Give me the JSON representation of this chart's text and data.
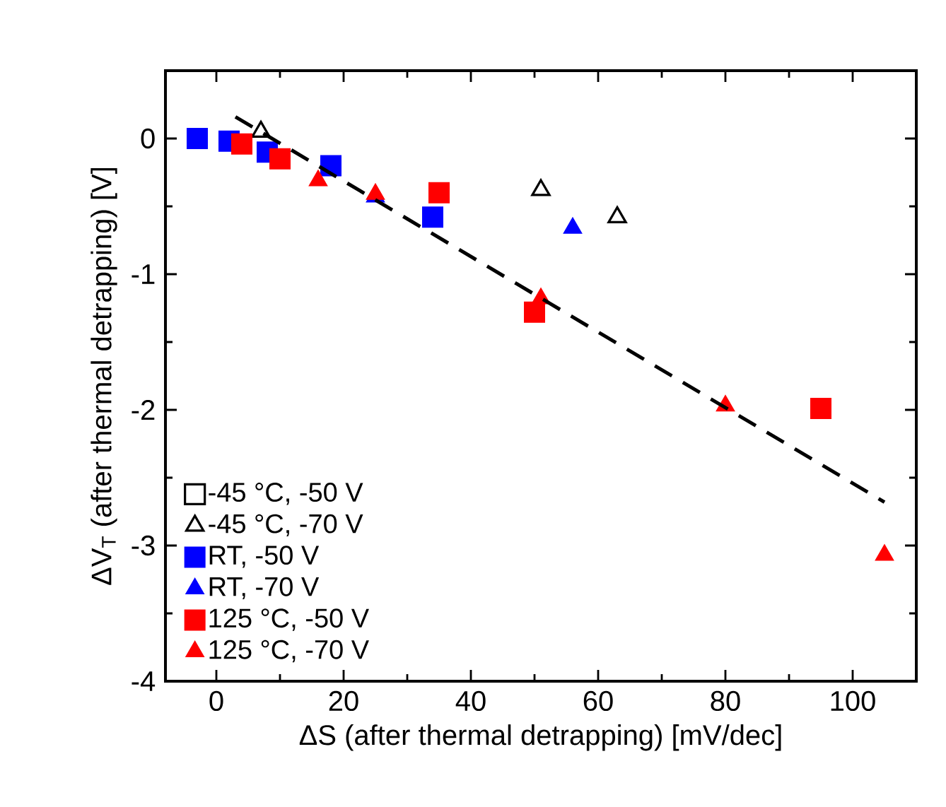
{
  "chart_data": {
    "type": "scatter",
    "xlabel": "ΔS (after thermal detrapping) [mV/dec]",
    "ylabel": "ΔV$_{T}$ (after thermal detrapping) [V]",
    "xlim": [
      -8,
      110
    ],
    "ylim": [
      -4,
      0.5
    ],
    "xticks": [
      0,
      20,
      40,
      60,
      80,
      100
    ],
    "yticks": [
      -4,
      -3,
      -2,
      -1,
      0
    ],
    "grid": false,
    "legend": "bottom left",
    "series": [
      {
        "name": "-45 °C, -50 V",
        "color": "#000000",
        "marker": "square"
      },
      {
        "name": "-45 °C, -70 V",
        "color": "#000000",
        "marker": "triangle",
        "x": [
          7,
          51,
          63
        ],
        "values": [
          0.05,
          -0.38,
          -0.58
        ]
      },
      {
        "name": "RT, -50 V",
        "color": "#0000ff",
        "marker": "square",
        "x": [
          -3,
          2,
          8,
          18,
          34
        ],
        "values": [
          0,
          -0.02,
          -0.1,
          -0.2,
          -0.58
        ]
      },
      {
        "name": "RT, -70 V",
        "color": "#0000ff",
        "marker": "triangle",
        "x": [
          25,
          56
        ],
        "values": [
          -0.43,
          -0.66
        ]
      },
      {
        "name": "125 °C, -50 V",
        "color": "#ff0000",
        "marker": "square",
        "x": [
          4,
          10,
          35,
          50,
          95
        ],
        "values": [
          -0.04,
          -0.15,
          -0.4,
          -1.28,
          -1.99
        ]
      },
      {
        "name": "125 °C, -70 V",
        "color": "#ff0000",
        "marker": "triangle",
        "x": [
          16,
          25,
          51,
          80,
          105
        ],
        "values": [
          -0.31,
          -0.41,
          -1.18,
          -1.97,
          -3.07
        ]
      },
      {
        "type": "line",
        "color": "#000000",
        "line_style": "dashed",
        "marker": "none",
        "x": [
          3,
          105
        ],
        "values": [
          0.16,
          -2.68
        ]
      }
    ]
  }
}
